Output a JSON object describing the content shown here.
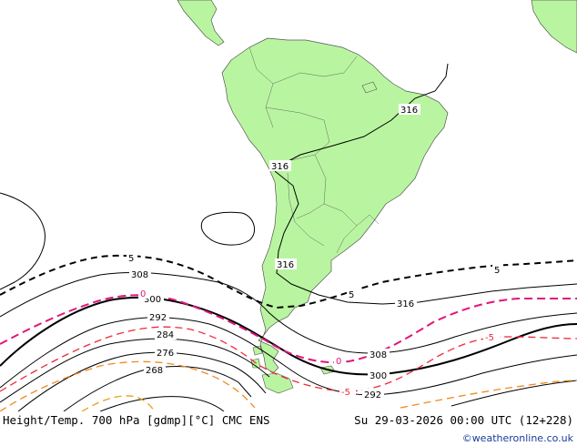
{
  "map": {
    "contour_labels": {
      "h316_north": "316",
      "h316_nw": "316",
      "h316_andes": "316",
      "h316_south": "316",
      "h308_west": "308",
      "h308_east": "308",
      "h300_west": "300",
      "h300_east": "300",
      "h292_west": "292",
      "h292_east": "292",
      "h284": "284",
      "h276": "276",
      "h268": "268",
      "t5_west": "5",
      "t5_east": "5",
      "t5_mid": "5",
      "t0_west": "0",
      "t0_east": "0",
      "tm5_east": "-5",
      "tm5_mid": "-5"
    },
    "colors": {
      "land": "#b9f5a0",
      "ocean": "#ffffff",
      "height_contour": "#000000",
      "temp_5": "#000000",
      "temp_0": "#e0157a",
      "temp_minus5": "#ee2a3a",
      "temp_minus10": "#f08a1e"
    }
  },
  "footer": {
    "title": "Height/Temp. 700 hPa [gdmp][°C] CMC ENS",
    "datetime": "Su 29-03-2026 00:00 UTC (12+228)",
    "credit": "©weatheronline.co.uk"
  }
}
